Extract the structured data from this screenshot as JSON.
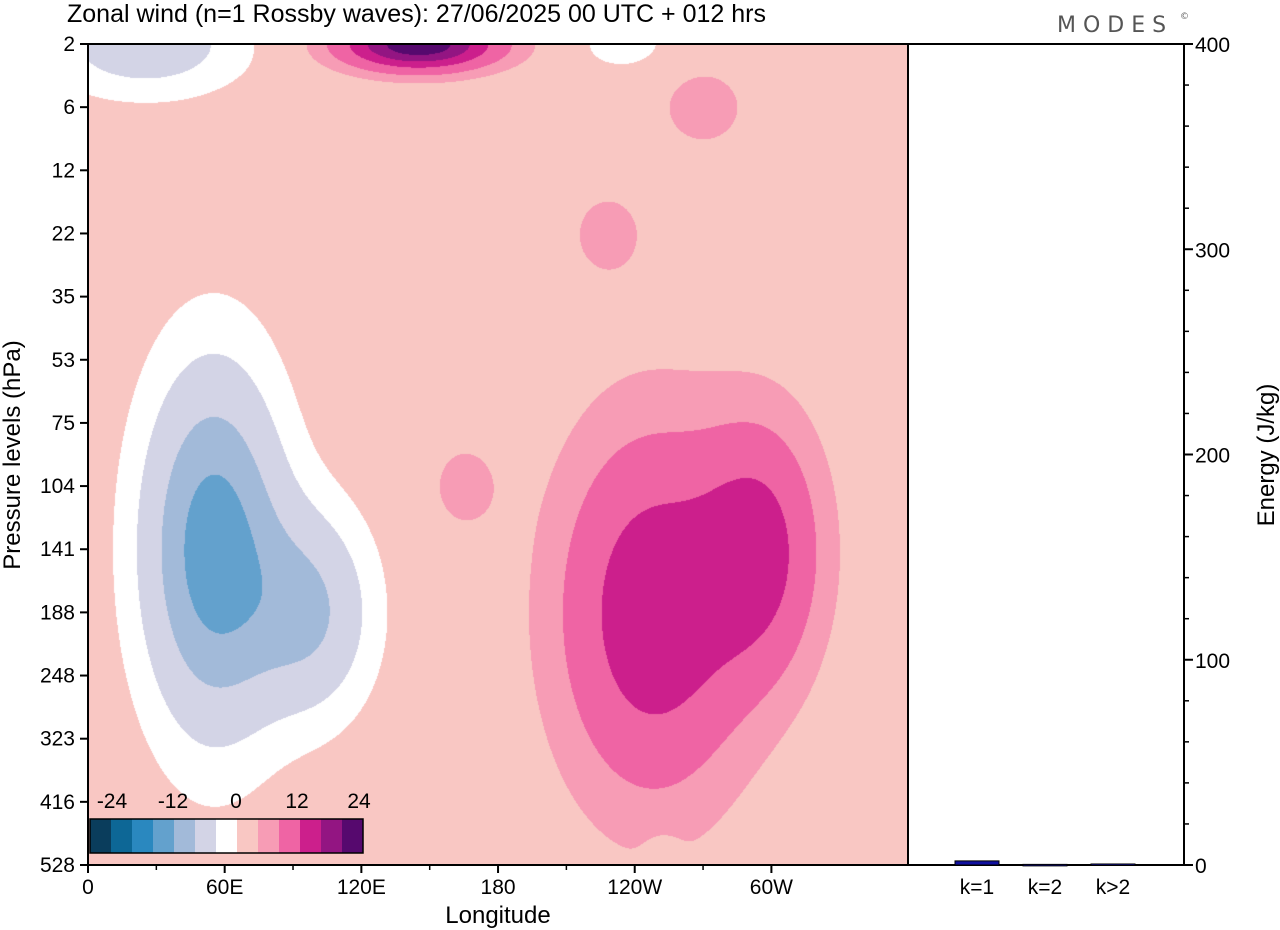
{
  "title": "Zonal wind (n=1 Rossby waves):  27/06/2025  00 UTC  + 012 hrs",
  "brand": "MODES",
  "brand_mark": "©",
  "colors": {
    "neg": [
      "#0a3d5c",
      "#0d6796",
      "#2a88bf",
      "#63a1cd",
      "#a2bad9",
      "#d3d4e6"
    ],
    "zero": "#ffffff",
    "pos": [
      "#f9c7c3",
      "#f79cb5",
      "#ef64a4",
      "#cc1f8c",
      "#931582",
      "#56096e"
    ],
    "bar": "#1010a0"
  },
  "chart_data": [
    {
      "type": "heatmap",
      "title": "Zonal wind (n=1 Rossby waves):  27/06/2025  00 UTC  + 012 hrs",
      "xlabel": "Longitude",
      "ylabel": "Pressure levels (hPa)",
      "x_ticks": [
        "0",
        "60E",
        "120E",
        "180",
        "120W",
        "60W"
      ],
      "y_ticks": [
        "2",
        "6",
        "12",
        "22",
        "35",
        "53",
        "75",
        "104",
        "141",
        "188",
        "248",
        "323",
        "416",
        "528"
      ],
      "colorbar": {
        "tick_labels": [
          "-24",
          "-12",
          "0",
          "12",
          "24"
        ],
        "levels": [
          -30,
          -25,
          -20,
          -15,
          -10,
          -5,
          -2,
          2,
          5,
          10,
          15,
          20,
          25,
          30
        ]
      },
      "features": [
        {
          "lon": 55,
          "level": "141",
          "peak": -18,
          "lon_width": 32,
          "level_span": [
            53,
            416
          ]
        },
        {
          "lon": 98,
          "level": "188",
          "peak": -10,
          "lon_width": 28,
          "level_span": [
            104,
            323
          ]
        },
        {
          "lon": 25,
          "level": "2",
          "peak": -8,
          "lon_width": 45,
          "level_span": [
            2,
            12
          ]
        },
        {
          "lon": 145,
          "level": "2",
          "peak": 24,
          "lon_width": 35,
          "level_span": [
            2,
            6
          ]
        },
        {
          "lon": 248,
          "level": "188",
          "peak": 14,
          "lon_width": 42,
          "level_span": [
            53,
            416
          ]
        },
        {
          "lon": 295,
          "level": "141",
          "peak": 11,
          "lon_width": 28,
          "level_span": [
            75,
            323
          ]
        },
        {
          "lon": 228,
          "level": "22",
          "peak": 3,
          "lon_width": 20,
          "level_span": [
            12,
            35
          ]
        },
        {
          "lon": 165,
          "level": "104",
          "peak": 3,
          "lon_width": 18,
          "level_span": [
            75,
            141
          ]
        },
        {
          "lon": 270,
          "level": "6",
          "peak": 3,
          "lon_width": 25,
          "level_span": [
            2,
            12
          ]
        },
        {
          "lon": 235,
          "level": "2",
          "peak": -4,
          "lon_width": 20,
          "level_span": [
            2,
            6
          ]
        },
        {
          "lon": 252,
          "level": "528",
          "peak": -3,
          "lon_width": 8,
          "level_span": [
            416,
            528
          ]
        }
      ]
    },
    {
      "type": "bar",
      "ylabel": "Energy (J/kg)",
      "categories": [
        "k=1",
        "k=2",
        "k>2"
      ],
      "values": [
        2,
        0.3,
        0.5
      ],
      "ylim": [
        0,
        400
      ],
      "y_ticks": [
        "0",
        "100",
        "200",
        "300",
        "400"
      ]
    }
  ]
}
